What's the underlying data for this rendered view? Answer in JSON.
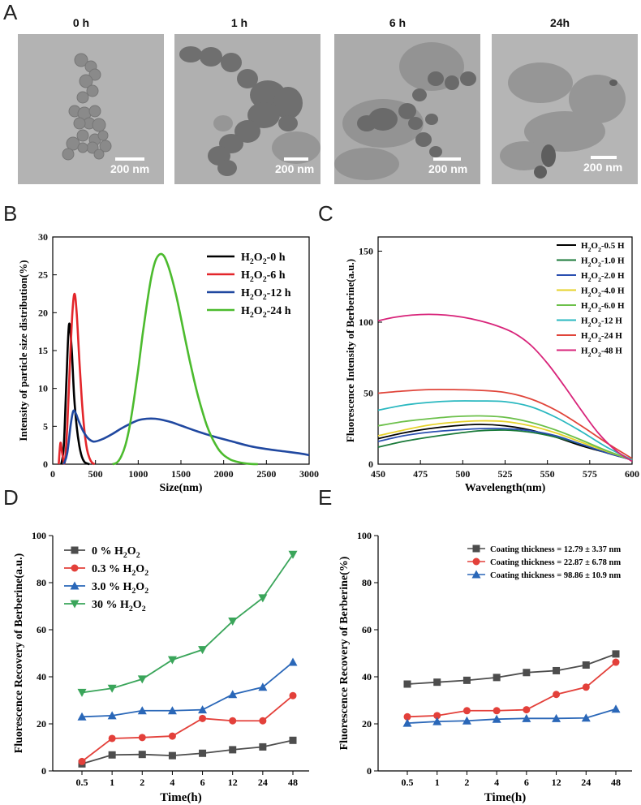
{
  "panels": {
    "A": "A",
    "B": "B",
    "C": "C",
    "D": "D",
    "E": "E"
  },
  "tem_images": [
    {
      "title": "0 h",
      "scale": "200 nm"
    },
    {
      "title": "1 h",
      "scale": "200 nm"
    },
    {
      "title": "6 h",
      "scale": "200 nm"
    },
    {
      "title": "24h",
      "scale": "200 nm"
    }
  ],
  "chart_data": [
    {
      "id": "B",
      "type": "line",
      "title": "",
      "xlabel": "Size(nm)",
      "ylabel": "Intensity of particle size distribution(%)",
      "xlim": [
        0,
        3000
      ],
      "ylim": [
        0,
        30
      ],
      "xticks": [
        "0",
        "500",
        "1000",
        "1500",
        "2000",
        "2500",
        "3000"
      ],
      "yticks": [
        "0",
        "5",
        "10",
        "15",
        "20",
        "25",
        "30"
      ],
      "legend": [
        "H2O2-0 h",
        "H2O2-6 h",
        "H2O2-12 h",
        "H2O2-24 h"
      ],
      "series": [
        {
          "name": "H2O2-0 h",
          "color": "#000000",
          "x": [
            100,
            130,
            160,
            190,
            220,
            250,
            280,
            310,
            340,
            370,
            400,
            430
          ],
          "y": [
            0,
            2.5,
            11,
            18.4,
            15.5,
            9,
            5,
            2.5,
            1,
            0.3,
            0.1,
            0
          ]
        },
        {
          "name": "H2O2-6 h",
          "color": "#e3262b",
          "x": [
            70,
            90,
            110,
            140,
            170,
            200,
            230,
            255,
            280,
            310,
            340,
            370,
            400,
            430,
            460,
            490
          ],
          "y": [
            0,
            2.8,
            1.5,
            0.2,
            5,
            13,
            20,
            22.5,
            20,
            14,
            8.5,
            4.5,
            2,
            0.8,
            0.2,
            0
          ]
        },
        {
          "name": "H2O2-12 h",
          "color": "#2048a0",
          "x": [
            130,
            170,
            210,
            240,
            270,
            300,
            350,
            400,
            450,
            500,
            600,
            700,
            800,
            900,
            1000,
            1100,
            1200,
            1300,
            1400,
            1500,
            1700,
            1900,
            2100,
            2300,
            2500,
            2700,
            2900,
            3000
          ],
          "y": [
            0,
            1.5,
            5.2,
            7,
            6.7,
            5.8,
            4.5,
            3.6,
            3.1,
            3.0,
            3.4,
            4.0,
            4.7,
            5.3,
            5.8,
            6.0,
            6.0,
            5.8,
            5.5,
            5.1,
            4.3,
            3.6,
            3.0,
            2.4,
            2.0,
            1.7,
            1.4,
            1.2
          ]
        },
        {
          "name": "H2O2-24 h",
          "color": "#4cbb2e",
          "x": [
            700,
            750,
            800,
            850,
            900,
            950,
            1000,
            1050,
            1100,
            1150,
            1200,
            1250,
            1300,
            1350,
            1400,
            1450,
            1500,
            1550,
            1600,
            1650,
            1700,
            1750,
            1800,
            1850,
            1900,
            1950,
            2000,
            2050,
            2100,
            2200,
            2300,
            2400
          ],
          "y": [
            0,
            0.2,
            1,
            2.5,
            5,
            8.5,
            12.5,
            17,
            21,
            24.5,
            26.8,
            27.7,
            27.5,
            26.2,
            24.3,
            22,
            19.3,
            16.5,
            13.8,
            11.3,
            9,
            7,
            5.2,
            3.8,
            2.7,
            1.8,
            1.2,
            0.8,
            0.5,
            0.2,
            0.05,
            0
          ]
        }
      ]
    },
    {
      "id": "C",
      "type": "line",
      "title": "",
      "xlabel": "Wavelength(nm)",
      "ylabel": "Fluorescence Intensity of Berberine(a.u.)",
      "xlim": [
        450,
        600
      ],
      "ylim": [
        0,
        160
      ],
      "xticks": [
        "450",
        "475",
        "500",
        "525",
        "550",
        "575",
        "600"
      ],
      "yticks": [
        "0",
        "50",
        "100",
        "150"
      ],
      "legend": [
        "H2O2-0.5 H",
        "H2O2-1.0 H",
        "H2O2-2.0 H",
        "H2O2-4.0 H",
        "H2O2-6.0 H",
        "H2O2-12 H",
        "H2O2-24 H",
        "H2O2-48 H"
      ],
      "series": [
        {
          "name": "H2O2-0.5 H",
          "color": "#000000",
          "x": [
            450,
            465,
            480,
            495,
            510,
            525,
            540,
            555,
            570,
            585,
            600
          ],
          "y": [
            18,
            22,
            25,
            27,
            28,
            27,
            24,
            19,
            13,
            8,
            3
          ]
        },
        {
          "name": "H2O2-1.0 H",
          "color": "#1a7a3a",
          "x": [
            450,
            465,
            480,
            495,
            510,
            525,
            540,
            555,
            570,
            585,
            600
          ],
          "y": [
            12,
            16,
            19,
            21.5,
            23.5,
            24,
            22.5,
            19,
            14,
            8,
            3
          ]
        },
        {
          "name": "H2O2-2.0 H",
          "color": "#2a4fb0",
          "x": [
            450,
            465,
            480,
            495,
            510,
            525,
            540,
            555,
            570,
            585,
            600
          ],
          "y": [
            16,
            20,
            22.5,
            24,
            25,
            25,
            23.5,
            20,
            14,
            8,
            3
          ]
        },
        {
          "name": "H2O2-4.0 H",
          "color": "#e6d22a",
          "x": [
            450,
            465,
            480,
            495,
            510,
            525,
            540,
            555,
            570,
            585,
            600
          ],
          "y": [
            20,
            24,
            27.5,
            29.5,
            30.5,
            30,
            27,
            22,
            15.5,
            9,
            3
          ]
        },
        {
          "name": "H2O2-6.0 H",
          "color": "#6cc04a",
          "x": [
            450,
            465,
            480,
            495,
            510,
            525,
            540,
            555,
            570,
            585,
            600
          ],
          "y": [
            27,
            30,
            32,
            33.5,
            34,
            33,
            29.5,
            24,
            17,
            9.5,
            3
          ]
        },
        {
          "name": "H2O2-12 H",
          "color": "#2ab8c0",
          "x": [
            450,
            465,
            480,
            495,
            510,
            525,
            540,
            555,
            570,
            585,
            600
          ],
          "y": [
            38,
            41.5,
            43.5,
            44.5,
            44.5,
            44,
            40.5,
            33,
            23,
            12,
            3
          ]
        },
        {
          "name": "H2O2-24 H",
          "color": "#e0453a",
          "x": [
            450,
            465,
            480,
            495,
            510,
            525,
            540,
            555,
            570,
            585,
            600
          ],
          "y": [
            50,
            51.5,
            52.5,
            52.5,
            52,
            50.5,
            46,
            38,
            27,
            15,
            4
          ]
        },
        {
          "name": "H2O2-48 H",
          "color": "#d8247a",
          "x": [
            450,
            460,
            470,
            480,
            490,
            500,
            510,
            520,
            530,
            540,
            550,
            560,
            570,
            580,
            590,
            600
          ],
          "y": [
            101,
            103.5,
            105,
            105.5,
            105,
            103.5,
            101,
            97.5,
            92.5,
            84,
            71,
            55,
            38,
            22,
            10,
            2
          ]
        }
      ]
    },
    {
      "id": "D",
      "type": "line",
      "title": "",
      "xlabel": "Time(h)",
      "ylabel": "Fluorescence Recovery of Berberine(a.u.)",
      "ylim": [
        0,
        100
      ],
      "categories": [
        "0.5",
        "1",
        "2",
        "4",
        "6",
        "12",
        "24",
        "48"
      ],
      "yticks": [
        "0",
        "20",
        "40",
        "60",
        "80",
        "100"
      ],
      "legend": [
        "0 % H2O2",
        "0.3 % H2O2",
        "3.0 % H2O2",
        "30 % H2O2"
      ],
      "series": [
        {
          "name": "0 % H2O2",
          "color": "#4d4d4d",
          "marker": "square",
          "values": [
            3,
            6.8,
            7,
            6.5,
            7.5,
            9,
            10.2,
            13
          ]
        },
        {
          "name": "0.3 % H2O2",
          "color": "#e3403a",
          "marker": "circle",
          "values": [
            4,
            13.8,
            14.2,
            14.8,
            22.3,
            21.3,
            21.3,
            32
          ]
        },
        {
          "name": "3.0 % H2O2",
          "color": "#2a67b8",
          "marker": "triangle-up",
          "values": [
            23,
            23.5,
            25.6,
            25.6,
            26,
            32.5,
            35.6,
            46.2
          ]
        },
        {
          "name": "30 % H2O2",
          "color": "#3aa55a",
          "marker": "triangle-down",
          "values": [
            33.3,
            35.1,
            39,
            47.2,
            51.5,
            63.6,
            73.5,
            92
          ]
        }
      ]
    },
    {
      "id": "E",
      "type": "line",
      "title": "",
      "xlabel": "Time(h)",
      "ylabel": "Fluorescence Recovery of Berberine(%)",
      "ylim": [
        0,
        100
      ],
      "categories": [
        "0.5",
        "1",
        "2",
        "4",
        "6",
        "12",
        "24",
        "48"
      ],
      "yticks": [
        "0",
        "20",
        "40",
        "60",
        "80",
        "100"
      ],
      "legend": [
        "Coating thickness = 12.79 ± 3.37 nm",
        "Coating thickness = 22.87 ± 6.78 nm",
        "Coating thickness = 98.86 ± 10.9 nm"
      ],
      "series": [
        {
          "name": "Coating thickness = 12.79 ± 3.37 nm",
          "color": "#4d4d4d",
          "marker": "square",
          "values": [
            36.9,
            37.7,
            38.5,
            39.7,
            41.8,
            42.6,
            45,
            49.7
          ]
        },
        {
          "name": "Coating thickness = 22.87 ± 6.78 nm",
          "color": "#e3403a",
          "marker": "circle",
          "values": [
            23,
            23.5,
            25.6,
            25.6,
            26,
            32.5,
            35.6,
            46.2
          ]
        },
        {
          "name": "Coating thickness = 98.86 ± 10.9 nm",
          "color": "#2a67b8",
          "marker": "triangle-up",
          "values": [
            20.3,
            21,
            21.3,
            22,
            22.3,
            22.3,
            22.5,
            26.3
          ]
        }
      ]
    }
  ]
}
